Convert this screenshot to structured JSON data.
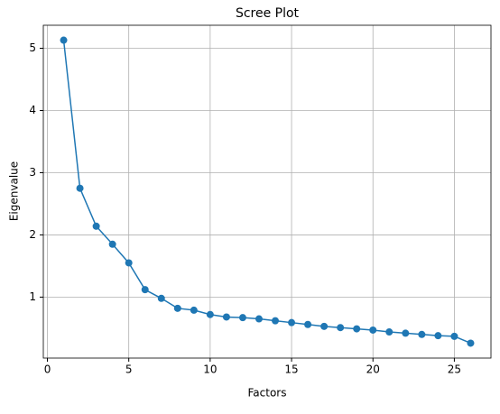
{
  "chart_data": {
    "type": "line",
    "title": "Scree Plot",
    "x_label": "Factors",
    "y_label": "Eigenvalue",
    "x": [
      1,
      2,
      3,
      4,
      5,
      6,
      7,
      8,
      9,
      10,
      11,
      12,
      13,
      14,
      15,
      16,
      17,
      18,
      19,
      20,
      21,
      22,
      23,
      24,
      25,
      26
    ],
    "series": [
      {
        "name": "Eigenvalue",
        "color": "#1f77b4",
        "values": [
          5.13,
          2.75,
          2.14,
          1.85,
          1.55,
          1.12,
          0.98,
          0.82,
          0.79,
          0.72,
          0.68,
          0.67,
          0.65,
          0.62,
          0.59,
          0.56,
          0.53,
          0.51,
          0.49,
          0.47,
          0.44,
          0.42,
          0.4,
          0.38,
          0.37,
          0.26
        ]
      }
    ],
    "xlim": [
      -0.25,
      27.25
    ],
    "xticks": [
      0,
      5,
      10,
      15,
      20,
      25
    ],
    "ylim": [
      0.02,
      5.37
    ],
    "yticks": [
      1,
      2,
      3,
      4,
      5
    ],
    "grid": true,
    "markers": true
  }
}
